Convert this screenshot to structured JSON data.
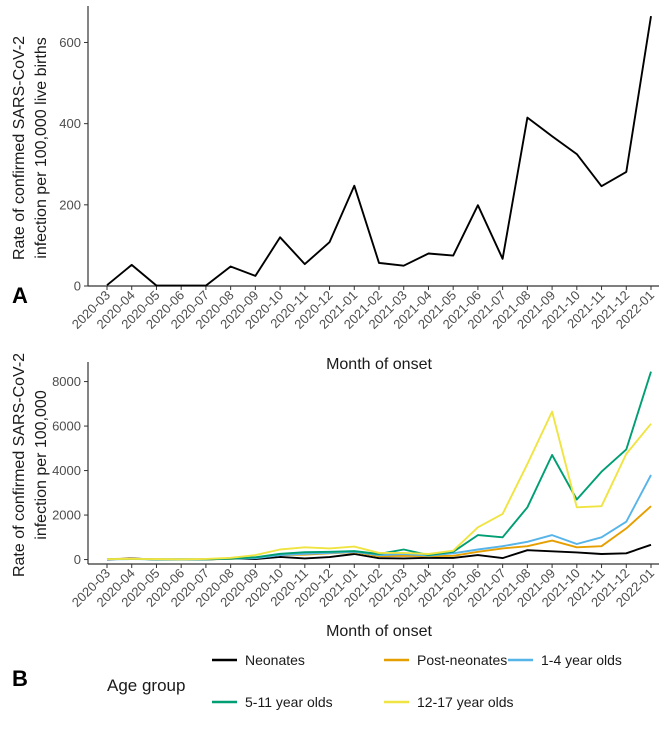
{
  "chart_data": [
    {
      "type": "line",
      "panel_label": "A",
      "xlabel": "Month of onset",
      "ylabel_line1": "Rate of confirmed SARS-CoV-2",
      "ylabel_line2": "infection per 100,000 live births",
      "ylim": [
        0,
        680
      ],
      "yticks": [
        0,
        200,
        400,
        600
      ],
      "grid": false,
      "categories": [
        "2020-03",
        "2020-04",
        "2020-05",
        "2020-06",
        "2020-07",
        "2020-08",
        "2020-09",
        "2020-10",
        "2020-11",
        "2020-12",
        "2021-01",
        "2021-02",
        "2021-03",
        "2021-04",
        "2021-05",
        "2021-06",
        "2021-07",
        "2021-08",
        "2021-09",
        "2021-10",
        "2021-11",
        "2021-12",
        "2022-01"
      ],
      "series": [
        {
          "color": "#000000",
          "values": [
            2,
            52,
            1,
            1,
            1,
            48,
            25,
            120,
            54,
            108,
            247,
            57,
            50,
            80,
            75,
            199,
            67,
            415,
            369,
            325,
            246,
            281,
            665
          ]
        }
      ]
    },
    {
      "type": "line",
      "panel_label": "B",
      "xlabel": "Month of onset",
      "ylabel_line1": "Rate of confirmed SARS-CoV-2",
      "ylabel_line2": "infection per 100,000",
      "ylim": [
        -200,
        8700
      ],
      "yticks": [
        0,
        2000,
        4000,
        6000,
        8000
      ],
      "grid": false,
      "legend_title": "Age group",
      "legend_position": "bottom",
      "categories": [
        "2020-03",
        "2020-04",
        "2020-05",
        "2020-06",
        "2020-07",
        "2020-08",
        "2020-09",
        "2020-10",
        "2020-11",
        "2020-12",
        "2021-01",
        "2021-02",
        "2021-03",
        "2021-04",
        "2021-05",
        "2021-06",
        "2021-07",
        "2021-08",
        "2021-09",
        "2021-10",
        "2021-11",
        "2021-12",
        "2022-01"
      ],
      "series": [
        {
          "name": "Neonates",
          "color": "#000000",
          "values": [
            0,
            50,
            0,
            0,
            0,
            50,
            20,
            120,
            50,
            110,
            250,
            60,
            50,
            80,
            75,
            200,
            65,
            420,
            370,
            320,
            250,
            280,
            665
          ]
        },
        {
          "name": "Post-neonates",
          "color": "#e69f00",
          "values": [
            20,
            40,
            10,
            10,
            10,
            30,
            80,
            200,
            220,
            280,
            330,
            150,
            170,
            150,
            170,
            350,
            500,
            600,
            850,
            550,
            600,
            1400,
            2400
          ]
        },
        {
          "name": "1-4 year olds",
          "color": "#56b4e9",
          "values": [
            10,
            20,
            10,
            10,
            10,
            40,
            60,
            200,
            260,
            300,
            350,
            200,
            250,
            180,
            280,
            450,
            600,
            800,
            1100,
            700,
            1000,
            1700,
            3800
          ]
        },
        {
          "name": "5-11 year olds",
          "color": "#009e73",
          "values": [
            20,
            30,
            10,
            10,
            10,
            40,
            100,
            260,
            330,
            350,
            380,
            250,
            450,
            200,
            350,
            1100,
            1000,
            2350,
            4700,
            2700,
            3950,
            4950,
            8450
          ]
        },
        {
          "name": "12-17 year olds",
          "color": "#f0e442",
          "values": [
            20,
            30,
            20,
            10,
            30,
            80,
            200,
            450,
            550,
            500,
            580,
            300,
            300,
            250,
            400,
            1450,
            2050,
            4300,
            6650,
            2350,
            2400,
            4750,
            6100
          ]
        }
      ]
    }
  ]
}
